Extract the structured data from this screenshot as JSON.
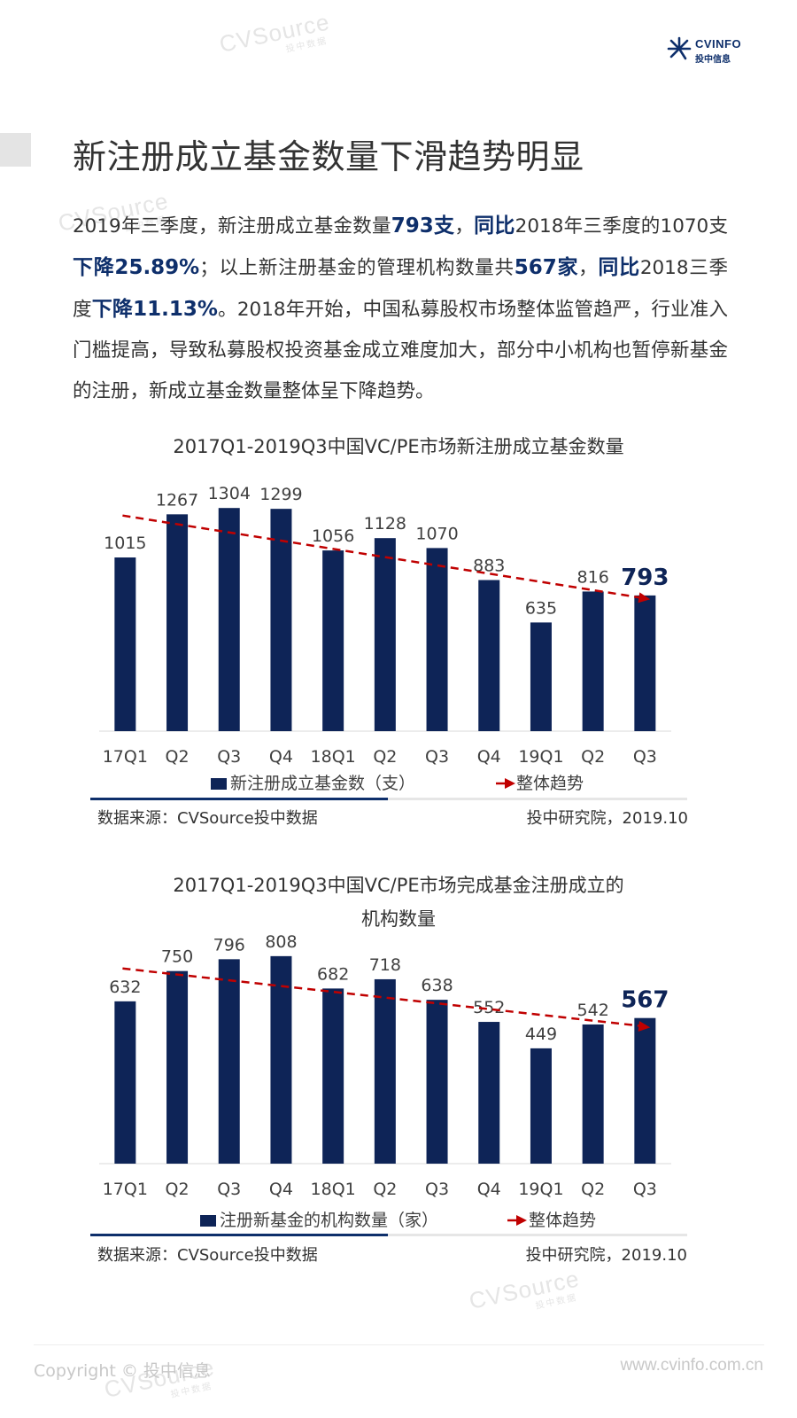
{
  "header": {
    "logo_brand": "CVINFO",
    "logo_sub": "投中信息",
    "title": "新注册成立基金数量下滑趋势明显"
  },
  "intro": {
    "segments": [
      {
        "text": "2019年三季度，新注册成立基金数量",
        "bold": false
      },
      {
        "text": "793支",
        "bold": true
      },
      {
        "text": "，",
        "bold": false
      },
      {
        "text": "同比",
        "bold": true
      },
      {
        "text": "2018年三季度的1070支",
        "bold": false
      },
      {
        "text": "下降25.89%",
        "bold": true
      },
      {
        "text": "；以上新注册基金的管理机构数量共",
        "bold": false
      },
      {
        "text": "567家",
        "bold": true
      },
      {
        "text": "，",
        "bold": false
      },
      {
        "text": "同比",
        "bold": true
      },
      {
        "text": "2018三季度",
        "bold": false
      },
      {
        "text": "下降11.13%",
        "bold": true
      },
      {
        "text": "。2018年开始，中国私募股权市场整体监管趋严，行业准入门槛提高，导致私募股权投资基金成立难度加大，部分中小机构也暂停新基金的注册，新成立基金数量整体呈下降趋势。",
        "bold": false
      }
    ]
  },
  "chart_data": [
    {
      "type": "bar",
      "title": "2017Q1-2019Q3中国VC/PE市场新注册成立基金数量",
      "categories": [
        "17Q1",
        "Q2",
        "Q3",
        "Q4",
        "18Q1",
        "Q2",
        "Q3",
        "Q4",
        "19Q1",
        "Q2",
        "Q3"
      ],
      "series": [
        {
          "name": "新注册成立基金数（支）",
          "values": [
            1015,
            1267,
            1304,
            1299,
            1056,
            1128,
            1070,
            883,
            635,
            816,
            793
          ]
        }
      ],
      "trend": {
        "name": "整体趋势",
        "type": "dashed-line-arrow",
        "from": 1260,
        "to": 770
      },
      "highlight_last": true,
      "ylim": [
        0,
        1450
      ],
      "bar_color": "#0e2457",
      "trend_color": "#c00000",
      "source": "数据来源：CVSource投中数据",
      "credit": "投中研究院，2019.10"
    },
    {
      "type": "bar",
      "title": "2017Q1-2019Q3中国VC/PE市场完成基金注册成立的",
      "title_line2": "机构数量",
      "categories": [
        "17Q1",
        "Q2",
        "Q3",
        "Q4",
        "18Q1",
        "Q2",
        "Q3",
        "Q4",
        "19Q1",
        "Q2",
        "Q3"
      ],
      "series": [
        {
          "name": "注册新基金的机构数量（家）",
          "values": [
            632,
            750,
            796,
            808,
            682,
            718,
            638,
            552,
            449,
            542,
            567
          ]
        }
      ],
      "trend": {
        "name": "整体趋势",
        "type": "dashed-line-arrow",
        "from": 760,
        "to": 530
      },
      "highlight_last": true,
      "ylim": [
        0,
        880
      ],
      "bar_color": "#0e2457",
      "trend_color": "#c00000",
      "source": "数据来源：CVSource投中数据",
      "credit": "投中研究院，2019.10"
    }
  ],
  "watermark": {
    "text": "CVSource",
    "sub": "投中数据"
  },
  "footer": {
    "copyright": "Copyright © 投中信息",
    "website": "www.cvinfo.com.cn"
  }
}
